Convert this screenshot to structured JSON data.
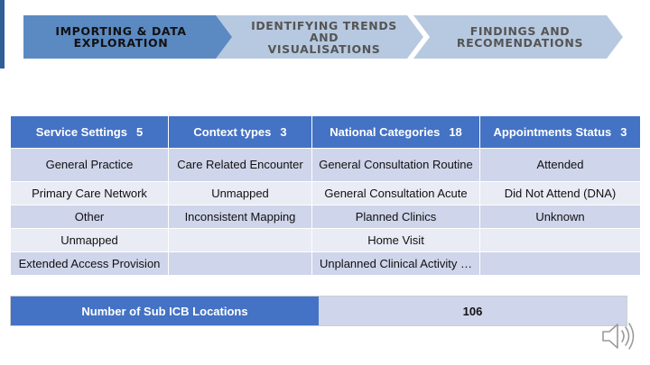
{
  "steps": [
    {
      "line1": "IMPORTING & DATA",
      "line2": "EXPLORATION"
    },
    {
      "line1": "IDENTIFYING TRENDS AND",
      "line2": "VISUALISATIONS"
    },
    {
      "line1": "FINDINGS AND",
      "line2": "RECOMENDATIONS"
    }
  ],
  "table": {
    "headers": [
      {
        "label": "Service Settings",
        "count": "5"
      },
      {
        "label": "Context types",
        "count": "3"
      },
      {
        "label": "National Categories",
        "count": "18"
      },
      {
        "label": "Appointments Status",
        "count": "3"
      }
    ],
    "rows": [
      [
        "General Practice",
        "Care Related Encounter",
        "General Consultation Routine",
        "Attended"
      ],
      [
        "Primary Care Network",
        "Unmapped",
        "General Consultation Acute",
        "Did Not Attend (DNA)"
      ],
      [
        "Other",
        "Inconsistent Mapping",
        "Planned Clinics",
        "Unknown"
      ],
      [
        "Unmapped",
        "",
        "Home Visit",
        ""
      ],
      [
        "Extended Access Provision",
        "",
        "Unplanned Clinical Activity …",
        ""
      ]
    ]
  },
  "summary": {
    "label": "Number of Sub ICB Locations",
    "value": "106"
  },
  "icons": {
    "audio": "speaker-icon"
  },
  "colors": {
    "header_blue": "#4472c4",
    "row_dark": "#cfd5ea",
    "row_light": "#e9ebf5",
    "step_active": "#5b8ac2",
    "step_inactive": "#b7c9e0"
  }
}
